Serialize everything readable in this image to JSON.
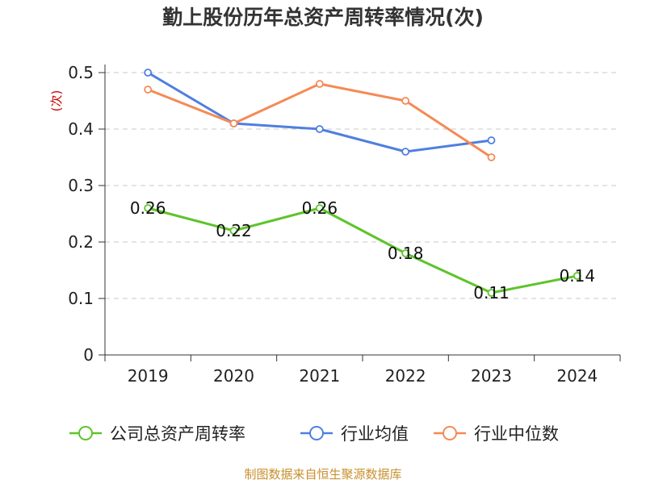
{
  "chart_data": {
    "type": "line",
    "title": "勤上股份历年总资产周转率情况(次)",
    "ylabel": "(次)",
    "xlabel": "",
    "categories": [
      "2019",
      "2020",
      "2021",
      "2022",
      "2023",
      "2024"
    ],
    "ylim": [
      0,
      0.5
    ],
    "yticks": [
      0,
      0.1,
      0.2,
      0.3,
      0.4,
      0.5
    ],
    "ytick_labels": [
      "0",
      "0.1",
      "0.2",
      "0.3",
      "0.4",
      "0.5"
    ],
    "grid": true,
    "legend_position": "bottom",
    "series": [
      {
        "name": "公司总资产周转率",
        "color": "#5ec42a",
        "values": [
          0.26,
          0.22,
          0.26,
          0.18,
          0.11,
          0.14
        ],
        "labels": [
          "0.26",
          "0.22",
          "0.26",
          "0.18",
          "0.11",
          "0.14"
        ]
      },
      {
        "name": "行业均值",
        "color": "#4f7fdf",
        "values": [
          0.5,
          0.41,
          0.4,
          0.36,
          0.38,
          null
        ]
      },
      {
        "name": "行业中位数",
        "color": "#f58a55",
        "values": [
          0.47,
          0.41,
          0.48,
          0.45,
          0.35,
          null
        ]
      }
    ]
  },
  "source_note": "制图数据来自恒生聚源数据库",
  "colors": {
    "ylabel": "#cc0000",
    "axis": "#333333",
    "grid": "#c8c8c8"
  }
}
